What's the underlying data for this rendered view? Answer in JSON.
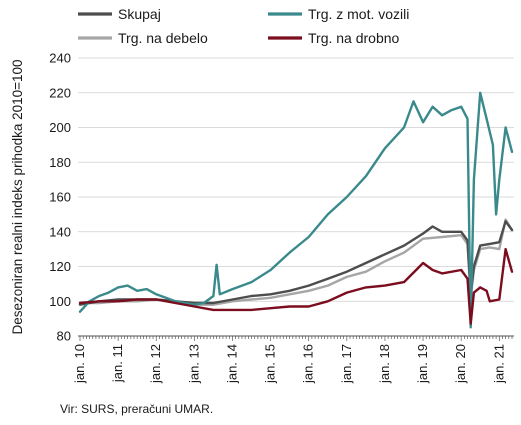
{
  "chart_data": {
    "type": "line",
    "ylabel": "Desezoniran realni indeks prihodka 2010=100",
    "ylim": [
      80,
      240
    ],
    "yticks": [
      80,
      100,
      120,
      140,
      160,
      180,
      200,
      220,
      240
    ],
    "x_tick_labels": [
      "jan. 10",
      "jan. 11",
      "jan. 12",
      "jan. 13",
      "jan. 14",
      "jan. 15",
      "jan. 16",
      "jan. 17",
      "jan. 18",
      "jan. 19",
      "jan. 20",
      "jan. 21"
    ],
    "x_range": [
      "2010-01",
      "2021-05"
    ],
    "grid": "horizontal",
    "legend_position": "top",
    "source_note": "Vir: SURS, preračuni UMAR.",
    "series": [
      {
        "name": "Skupaj",
        "color": "#4d4d4d",
        "points": [
          [
            "2010-01",
            98
          ],
          [
            "2010-07",
            100
          ],
          [
            "2011-01",
            101
          ],
          [
            "2011-07",
            101
          ],
          [
            "2012-01",
            101
          ],
          [
            "2012-07",
            100
          ],
          [
            "2013-01",
            99
          ],
          [
            "2013-07",
            99
          ],
          [
            "2014-01",
            101
          ],
          [
            "2014-07",
            103
          ],
          [
            "2015-01",
            104
          ],
          [
            "2015-07",
            106
          ],
          [
            "2016-01",
            109
          ],
          [
            "2016-07",
            113
          ],
          [
            "2017-01",
            117
          ],
          [
            "2017-07",
            122
          ],
          [
            "2018-01",
            127
          ],
          [
            "2018-07",
            132
          ],
          [
            "2019-01",
            139
          ],
          [
            "2019-04",
            143
          ],
          [
            "2019-07",
            140
          ],
          [
            "2020-01",
            140
          ],
          [
            "2020-03",
            135
          ],
          [
            "2020-04",
            104
          ],
          [
            "2020-05",
            120
          ],
          [
            "2020-07",
            132
          ],
          [
            "2020-10",
            133
          ],
          [
            "2021-01",
            134
          ],
          [
            "2021-03",
            146
          ],
          [
            "2021-05",
            141
          ]
        ]
      },
      {
        "name": "Trg. z mot. vozili",
        "color": "#3a8a8c",
        "points": [
          [
            "2010-01",
            94
          ],
          [
            "2010-04",
            100
          ],
          [
            "2010-07",
            103
          ],
          [
            "2010-10",
            105
          ],
          [
            "2011-01",
            108
          ],
          [
            "2011-04",
            109
          ],
          [
            "2011-07",
            106
          ],
          [
            "2011-10",
            107
          ],
          [
            "2012-01",
            104
          ],
          [
            "2012-04",
            102
          ],
          [
            "2012-07",
            100
          ],
          [
            "2012-10",
            99
          ],
          [
            "2013-01",
            98
          ],
          [
            "2013-04",
            99
          ],
          [
            "2013-07",
            103
          ],
          [
            "2013-08",
            121
          ],
          [
            "2013-09",
            104
          ],
          [
            "2014-01",
            107
          ],
          [
            "2014-07",
            111
          ],
          [
            "2015-01",
            118
          ],
          [
            "2015-07",
            128
          ],
          [
            "2016-01",
            137
          ],
          [
            "2016-07",
            150
          ],
          [
            "2017-01",
            160
          ],
          [
            "2017-07",
            172
          ],
          [
            "2018-01",
            188
          ],
          [
            "2018-07",
            200
          ],
          [
            "2018-10",
            215
          ],
          [
            "2019-01",
            203
          ],
          [
            "2019-04",
            212
          ],
          [
            "2019-07",
            207
          ],
          [
            "2019-10",
            210
          ],
          [
            "2020-01",
            212
          ],
          [
            "2020-03",
            205
          ],
          [
            "2020-04",
            85
          ],
          [
            "2020-05",
            170
          ],
          [
            "2020-07",
            220
          ],
          [
            "2020-09",
            205
          ],
          [
            "2020-11",
            190
          ],
          [
            "2020-12",
            150
          ],
          [
            "2021-01",
            170
          ],
          [
            "2021-03",
            200
          ],
          [
            "2021-05",
            186
          ]
        ]
      },
      {
        "name": "Trg. na debelo",
        "color": "#a6a6a6",
        "points": [
          [
            "2010-01",
            99
          ],
          [
            "2010-07",
            99
          ],
          [
            "2011-01",
            100
          ],
          [
            "2011-07",
            100
          ],
          [
            "2012-01",
            101
          ],
          [
            "2012-07",
            100
          ],
          [
            "2013-01",
            98
          ],
          [
            "2013-07",
            98
          ],
          [
            "2014-01",
            100
          ],
          [
            "2014-07",
            101
          ],
          [
            "2015-01",
            102
          ],
          [
            "2015-07",
            104
          ],
          [
            "2016-01",
            106
          ],
          [
            "2016-07",
            109
          ],
          [
            "2017-01",
            114
          ],
          [
            "2017-07",
            117
          ],
          [
            "2018-01",
            123
          ],
          [
            "2018-07",
            128
          ],
          [
            "2019-01",
            136
          ],
          [
            "2019-07",
            137
          ],
          [
            "2020-01",
            138
          ],
          [
            "2020-03",
            133
          ],
          [
            "2020-04",
            102
          ],
          [
            "2020-05",
            118
          ],
          [
            "2020-07",
            130
          ],
          [
            "2020-10",
            131
          ],
          [
            "2021-01",
            130
          ],
          [
            "2021-03",
            147
          ],
          [
            "2021-05",
            141
          ]
        ]
      },
      {
        "name": "Trg. na drobno",
        "color": "#7b0d1e",
        "points": [
          [
            "2010-01",
            99
          ],
          [
            "2010-07",
            100
          ],
          [
            "2011-01",
            100
          ],
          [
            "2011-07",
            101
          ],
          [
            "2012-01",
            101
          ],
          [
            "2012-07",
            99
          ],
          [
            "2013-01",
            97
          ],
          [
            "2013-07",
            95
          ],
          [
            "2014-01",
            95
          ],
          [
            "2014-07",
            95
          ],
          [
            "2015-01",
            96
          ],
          [
            "2015-07",
            97
          ],
          [
            "2016-01",
            97
          ],
          [
            "2016-07",
            100
          ],
          [
            "2017-01",
            105
          ],
          [
            "2017-07",
            108
          ],
          [
            "2018-01",
            109
          ],
          [
            "2018-07",
            111
          ],
          [
            "2019-01",
            122
          ],
          [
            "2019-04",
            118
          ],
          [
            "2019-07",
            116
          ],
          [
            "2020-01",
            118
          ],
          [
            "2020-03",
            113
          ],
          [
            "2020-04",
            87
          ],
          [
            "2020-05",
            105
          ],
          [
            "2020-07",
            108
          ],
          [
            "2020-09",
            106
          ],
          [
            "2020-10",
            100
          ],
          [
            "2021-01",
            101
          ],
          [
            "2021-03",
            130
          ],
          [
            "2021-05",
            117
          ]
        ]
      }
    ]
  }
}
